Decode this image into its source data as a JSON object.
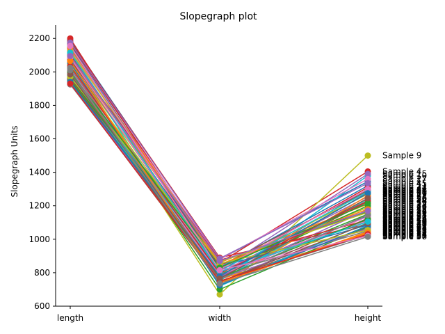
{
  "chart_data": {
    "type": "line",
    "title": "Slopegraph plot",
    "ylabel": "Slopegraph Units",
    "xlabel": "",
    "categories": [
      "length",
      "width",
      "height"
    ],
    "ylim": [
      600,
      2280
    ],
    "yticks": [
      600,
      800,
      1000,
      1200,
      1400,
      1600,
      1800,
      2000,
      2200
    ],
    "grid": false,
    "palette": [
      "#1f77b4",
      "#ff7f0e",
      "#2ca02c",
      "#d62728",
      "#9467bd",
      "#8c564b",
      "#e377c2",
      "#7f7f7f",
      "#bcbd22",
      "#17becf"
    ],
    "series": [
      {
        "name": "Sample 1",
        "values": [
          2190,
          880,
          1345
        ]
      },
      {
        "name": "Sample 2",
        "values": [
          2010,
          760,
          1035
        ]
      },
      {
        "name": "Sample 3",
        "values": [
          1960,
          790,
          1150
        ]
      },
      {
        "name": "Sample 4",
        "values": [
          2170,
          860,
          1405
        ]
      },
      {
        "name": "Sample 5",
        "values": [
          2120,
          800,
          1255
        ]
      },
      {
        "name": "Sample 6",
        "values": [
          1930,
          745,
          1070
        ]
      },
      {
        "name": "Sample 7",
        "values": [
          1990,
          820,
          1110
        ]
      },
      {
        "name": "Sample 8",
        "values": [
          2150,
          780,
          1295
        ]
      },
      {
        "name": "Sample 9",
        "values": [
          2050,
          670,
          1500
        ]
      },
      {
        "name": "Sample 10",
        "values": [
          1950,
          750,
          1380
        ]
      },
      {
        "name": "Sample 11",
        "values": [
          2140,
          830,
          1320
        ]
      },
      {
        "name": "Sample 12",
        "values": [
          2000,
          735,
          1045
        ]
      },
      {
        "name": "Sample 13",
        "values": [
          1970,
          870,
          1165
        ]
      },
      {
        "name": "Sample 14",
        "values": [
          2180,
          890,
          1090
        ]
      },
      {
        "name": "Sample 15",
        "values": [
          2080,
          815,
          1390
        ]
      },
      {
        "name": "Sample 16",
        "values": [
          1940,
          770,
          1225
        ]
      },
      {
        "name": "Sample 17",
        "values": [
          2030,
          805,
          1060
        ]
      },
      {
        "name": "Sample 18",
        "values": [
          1925,
          760,
          1280
        ]
      },
      {
        "name": "Sample 19",
        "values": [
          2060,
          845,
          1190
        ]
      },
      {
        "name": "Sample 20",
        "values": [
          2110,
          720,
          1100
        ]
      },
      {
        "name": "Sample 21",
        "values": [
          1985,
          780,
          1140
        ]
      },
      {
        "name": "Sample 22",
        "values": [
          2090,
          860,
          1210
        ]
      },
      {
        "name": "Sample 23",
        "values": [
          2020,
          700,
          1075
        ]
      },
      {
        "name": "Sample 24",
        "values": [
          2200,
          810,
          1310
        ]
      },
      {
        "name": "Sample 25",
        "values": [
          1955,
          775,
          1175
        ]
      },
      {
        "name": "Sample 26",
        "values": [
          2070,
          740,
          1125
        ]
      },
      {
        "name": "Sample 27",
        "values": [
          2130,
          880,
          1360
        ]
      },
      {
        "name": "Sample 28",
        "values": [
          1945,
          790,
          1050
        ]
      },
      {
        "name": "Sample 29",
        "values": [
          2040,
          825,
          1270
        ]
      },
      {
        "name": "Sample 30",
        "values": [
          1975,
          755,
          1240
        ]
      },
      {
        "name": "Sample 31",
        "values": [
          2160,
          835,
          1085
        ]
      },
      {
        "name": "Sample 32",
        "values": [
          2005,
          730,
          1260
        ]
      },
      {
        "name": "Sample 33",
        "values": [
          1965,
          800,
          1200
        ]
      },
      {
        "name": "Sample 34",
        "values": [
          2100,
          875,
          1115
        ]
      },
      {
        "name": "Sample 35",
        "values": [
          1935,
          765,
          1065
        ]
      },
      {
        "name": "Sample 36",
        "values": [
          2075,
          840,
          1290
        ]
      },
      {
        "name": "Sample 37",
        "values": [
          2015,
          785,
          1135
        ]
      },
      {
        "name": "Sample 38",
        "values": [
          1995,
          750,
          1025
        ]
      },
      {
        "name": "Sample 39",
        "values": [
          2125,
          865,
          1160
        ]
      },
      {
        "name": "Sample 40",
        "values": [
          1980,
          810,
          1285
        ]
      },
      {
        "name": "Sample 41",
        "values": [
          2055,
          725,
          1080
        ]
      },
      {
        "name": "Sample 42",
        "values": [
          2145,
          850,
          1180
        ]
      },
      {
        "name": "Sample 43",
        "values": [
          1950,
          770,
          1120
        ]
      },
      {
        "name": "Sample 44",
        "values": [
          2035,
          795,
          1230
        ]
      },
      {
        "name": "Sample 45",
        "values": [
          2175,
          885,
          1335
        ]
      },
      {
        "name": "Sample 46",
        "values": [
          1960,
          745,
          1095
        ]
      },
      {
        "name": "Sample 47",
        "values": [
          2085,
          820,
          1300
        ]
      },
      {
        "name": "Sample 48",
        "values": [
          2025,
          760,
          1145
        ]
      },
      {
        "name": "Sample 49",
        "values": [
          1970,
          855,
          1055
        ]
      },
      {
        "name": "Sample 50",
        "values": [
          2115,
          805,
          1105
        ]
      },
      {
        "name": "Sample 51",
        "values": [
          1940,
          780,
          1275
        ]
      },
      {
        "name": "Sample 52",
        "values": [
          2065,
          740,
          1040
        ]
      },
      {
        "name": "Sample 53",
        "values": [
          2000,
          830,
          1215
        ]
      },
      {
        "name": "Sample 54",
        "values": [
          1930,
          750,
          1030
        ]
      },
      {
        "name": "Sample 55",
        "values": [
          2095,
          870,
          1170
        ]
      },
      {
        "name": "Sample 56",
        "values": [
          1985,
          765,
          1245
        ]
      },
      {
        "name": "Sample 57",
        "values": [
          2155,
          815,
          1020
        ]
      },
      {
        "name": "Sample 58",
        "values": [
          2010,
          735,
          1015
        ]
      }
    ]
  }
}
